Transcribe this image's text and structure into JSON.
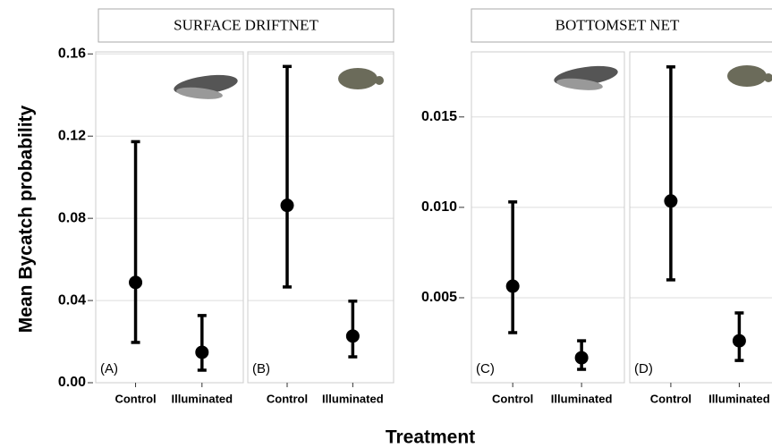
{
  "chart_data": [
    {
      "type": "errorbar",
      "title": "SURFACE DRIFTNET",
      "ylabel": "Mean Bycatch probability",
      "xlabel": "Treatment",
      "ylim": [
        0,
        0.161
      ],
      "yticks": [
        {
          "value": 0,
          "label": "0.00"
        },
        0.04,
        0.08,
        0.12,
        0.16
      ],
      "grid": true,
      "color": "#000000",
      "panels": [
        {
          "label": "(A)",
          "categories": [
            "Control",
            "Illuminated"
          ],
          "values": [
            0.0488,
            0.0148
          ],
          "lower": [
            0.0196,
            0.0061
          ],
          "upper": [
            0.1173,
            0.0327
          ]
        },
        {
          "label": "(B)",
          "categories": [
            "Control",
            "Illuminated"
          ],
          "values": [
            0.0863,
            0.0227
          ],
          "lower": [
            0.0466,
            0.0126
          ],
          "upper": [
            0.1539,
            0.0397
          ]
        }
      ]
    },
    {
      "type": "errorbar",
      "title": "BOTTOMSET NET",
      "ylim": [
        0.0003,
        0.0186
      ],
      "yticks": [
        0.005,
        {
          "value": 0.01,
          "label": "0.010"
        },
        0.015
      ],
      "grid": true,
      "color": "#000000",
      "panels": [
        {
          "label": "(C)",
          "categories": [
            "Control",
            "Illuminated"
          ],
          "values": [
            0.00564,
            0.00168
          ],
          "lower": [
            0.00307,
            0.00104
          ],
          "upper": [
            0.0103,
            0.00262
          ]
        },
        {
          "label": "(D)",
          "categories": [
            "Control",
            "Illuminated"
          ],
          "values": [
            0.01035,
            0.00262
          ],
          "lower": [
            0.00599,
            0.00153
          ],
          "upper": [
            0.01777,
            0.00416
          ]
        }
      ]
    }
  ]
}
